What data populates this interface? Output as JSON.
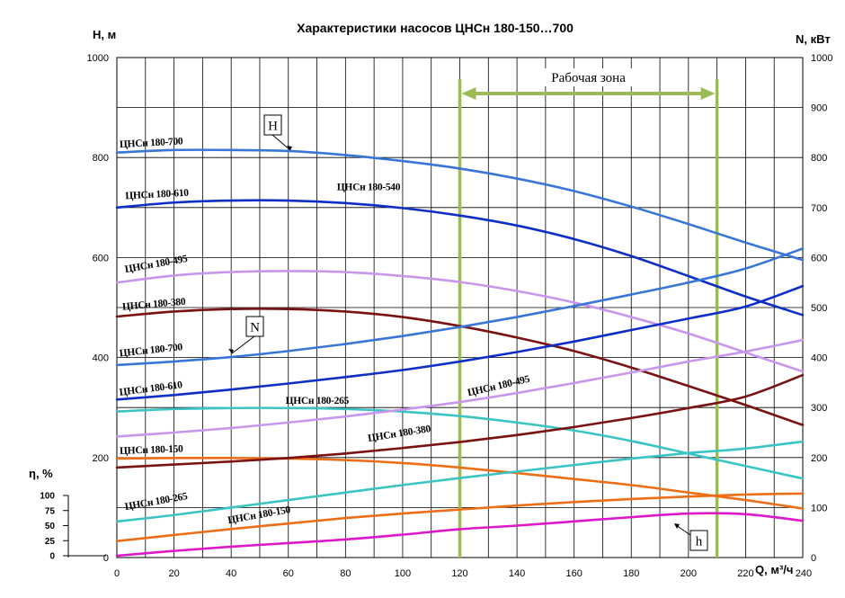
{
  "title": "Характеристики насосов ЦНСн 180-150…700",
  "left_axis_label": "H, м",
  "right_axis_label": "N, кВт",
  "eff_axis_label": "η, %",
  "x_axis_label": "Q, м³/ч",
  "zone_label": "Рабочая зона",
  "box_labels": {
    "H": "H",
    "N": "N",
    "h": "h"
  },
  "eff_ticks": [
    "100",
    "75",
    "50",
    "25",
    "0"
  ],
  "colors": {
    "c700": "#3a76d8",
    "c610": "#0e2ec8",
    "c495": "#c896ec",
    "c380": "#7a1212",
    "c265": "#3ac4c4",
    "c150": "#ee6e18",
    "eff": "#dd18c8",
    "zone": "#9bbb59",
    "grid": "#000000"
  },
  "chart_data": {
    "type": "line",
    "title": "Характеристики насосов ЦНСн 180-150…700",
    "xlabel": "Q, м³/ч",
    "ylabel_left": "H, м",
    "ylabel_right": "N, кВт",
    "ylabel_eff": "η, %",
    "xlim": [
      0,
      240
    ],
    "ylim_left": [
      0,
      1000
    ],
    "ylim_right": [
      0,
      1000
    ],
    "ylim_eff": [
      0,
      100
    ],
    "x_ticks": [
      0,
      20,
      40,
      60,
      80,
      100,
      120,
      140,
      160,
      180,
      200,
      220,
      240
    ],
    "y_ticks_left": [
      0,
      200,
      400,
      600,
      800,
      1000
    ],
    "y_ticks_right": [
      0,
      100,
      200,
      300,
      400,
      500,
      600,
      700,
      800,
      900,
      1000
    ],
    "grid": true,
    "working_zone": {
      "label": "Рабочая зона",
      "x": [
        120,
        210
      ]
    },
    "series": [
      {
        "name": "ЦНСн 180-700",
        "kind": "H",
        "color_key": "c700",
        "label": "ЦНСн 180-700",
        "x": [
          0,
          20,
          40,
          60,
          80,
          100,
          120,
          140,
          160,
          180,
          200,
          220,
          240
        ],
        "y": [
          810,
          815,
          815,
          813,
          805,
          793,
          778,
          758,
          733,
          702,
          667,
          630,
          595
        ]
      },
      {
        "name": "ЦНСн 180-610",
        "kind": "H",
        "color_key": "c610",
        "label": "ЦНСн 180-610",
        "x": [
          0,
          20,
          40,
          60,
          80,
          100,
          120,
          140,
          160,
          180,
          200,
          220,
          240
        ],
        "y": [
          700,
          710,
          714,
          714,
          709,
          699,
          684,
          664,
          637,
          603,
          563,
          522,
          485
        ]
      },
      {
        "name": "ЦНСн 180-495",
        "kind": "H",
        "color_key": "c495",
        "label": "ЦНСн 180-495",
        "x": [
          0,
          20,
          40,
          60,
          80,
          100,
          120,
          140,
          160,
          180,
          200,
          220,
          240
        ],
        "y": [
          550,
          564,
          571,
          573,
          571,
          563,
          551,
          533,
          510,
          481,
          448,
          410,
          372
        ]
      },
      {
        "name": "ЦНСн 180-380",
        "kind": "H",
        "color_key": "c380",
        "label": "ЦНСн 180-380",
        "x": [
          0,
          20,
          40,
          60,
          80,
          100,
          120,
          140,
          160,
          180,
          200,
          220,
          240
        ],
        "y": [
          482,
          492,
          497,
          497,
          492,
          481,
          463,
          440,
          413,
          380,
          343,
          305,
          265
        ]
      },
      {
        "name": "ЦНСн 180-265",
        "kind": "H",
        "color_key": "c265",
        "label": "ЦНСн 180-265",
        "x": [
          0,
          20,
          40,
          60,
          80,
          100,
          120,
          140,
          160,
          180,
          200,
          220,
          240
        ],
        "y": [
          292,
          297,
          299,
          299,
          297,
          292,
          283,
          270,
          254,
          233,
          208,
          183,
          158
        ]
      },
      {
        "name": "ЦНСн 180-150",
        "kind": "H",
        "color_key": "c150",
        "label": "ЦНСн 180-150",
        "x": [
          0,
          20,
          40,
          60,
          80,
          100,
          120,
          140,
          160,
          180,
          200,
          220,
          240
        ],
        "y": [
          198,
          199,
          199,
          198,
          195,
          189,
          180,
          169,
          157,
          145,
          130,
          115,
          98
        ]
      },
      {
        "name": "ЦНСн 180-700",
        "kind": "N",
        "color_key": "c700",
        "label": "ЦНСн 180-700",
        "x": [
          0,
          20,
          40,
          60,
          80,
          100,
          120,
          140,
          160,
          180,
          200,
          220,
          240
        ],
        "y": [
          385,
          392,
          401,
          413,
          427,
          443,
          461,
          481,
          503,
          526,
          550,
          578,
          618
        ]
      },
      {
        "name": "ЦНСн 180-610",
        "kind": "N",
        "color_key": "c610",
        "label": "ЦНСн 180-610",
        "x": [
          0,
          20,
          40,
          60,
          80,
          100,
          120,
          140,
          160,
          180,
          200,
          220,
          240
        ],
        "y": [
          316,
          325,
          336,
          348,
          361,
          375,
          392,
          411,
          432,
          455,
          478,
          502,
          543
        ]
      },
      {
        "name": "ЦНСн 180-495",
        "kind": "N",
        "color_key": "c495",
        "label": "ЦНСн 180-495",
        "x": [
          0,
          20,
          40,
          60,
          80,
          100,
          120,
          140,
          160,
          180,
          200,
          220,
          240
        ],
        "y": [
          242,
          250,
          259,
          270,
          282,
          296,
          311,
          329,
          349,
          370,
          392,
          412,
          435
        ]
      },
      {
        "name": "ЦНСн 180-380",
        "kind": "N",
        "color_key": "c380",
        "label": "ЦНСн 180-380",
        "x": [
          0,
          20,
          40,
          60,
          80,
          100,
          120,
          140,
          160,
          180,
          200,
          220,
          240
        ],
        "y": [
          180,
          186,
          192,
          199,
          208,
          219,
          231,
          245,
          261,
          279,
          299,
          322,
          365
        ]
      },
      {
        "name": "ЦНСн 180-265",
        "kind": "N",
        "color_key": "c265",
        "label": "ЦНСн 180-265",
        "x": [
          0,
          20,
          40,
          60,
          80,
          100,
          120,
          140,
          160,
          180,
          200,
          220,
          240
        ],
        "y": [
          72,
          85,
          100,
          115,
          130,
          145,
          159,
          172,
          185,
          198,
          209,
          218,
          232
        ]
      },
      {
        "name": "ЦНСн 180-150",
        "kind": "N",
        "color_key": "c150",
        "label": "ЦНСн 180-150",
        "x": [
          0,
          20,
          40,
          60,
          80,
          100,
          120,
          140,
          160,
          180,
          200,
          220,
          240
        ],
        "y": [
          33,
          45,
          57,
          68,
          79,
          88,
          96,
          104,
          111,
          117,
          122,
          126,
          128
        ]
      },
      {
        "name": "h",
        "kind": "eff",
        "color_key": "eff",
        "label": "",
        "x": [
          0,
          20,
          40,
          60,
          80,
          100,
          120,
          140,
          160,
          180,
          200,
          220,
          240
        ],
        "y": [
          0,
          8,
          15,
          21,
          27,
          35,
          44,
          50,
          57,
          64,
          70,
          69,
          58
        ]
      }
    ]
  },
  "curve_labels": [
    {
      "text": "ЦНСн 180-700",
      "x": 1,
      "y": 820,
      "rot": -3
    },
    {
      "text": "ЦНСн 180-610",
      "x": 3,
      "y": 717,
      "rot": -3
    },
    {
      "text": "ЦНСн 180-540",
      "x": 77,
      "y": 735,
      "rot": 0
    },
    {
      "text": "ЦНСн 180-495",
      "x": 3,
      "y": 570,
      "rot": -10
    },
    {
      "text": "ЦНСн 180-380",
      "x": 2,
      "y": 495,
      "rot": -5
    },
    {
      "text": "ЦНСн 180-700",
      "x": 1,
      "y": 402,
      "rot": -6
    },
    {
      "text": "ЦНСн 180-610",
      "x": 1,
      "y": 324,
      "rot": -7
    },
    {
      "text": "ЦНСн 180-265",
      "x": 59,
      "y": 308,
      "rot": 0
    },
    {
      "text": "ЦНСн 180-495",
      "x": 123,
      "y": 323,
      "rot": -13
    },
    {
      "text": "ЦНСн 180-380",
      "x": 88,
      "y": 232,
      "rot": -9
    },
    {
      "text": "ЦНСн 180-150",
      "x": 1,
      "y": 207,
      "rot": -2
    },
    {
      "text": "ЦНСн 180-265",
      "x": 3,
      "y": 95,
      "rot": -10
    },
    {
      "text": "ЦНСн 180-150",
      "x": 39,
      "y": 68,
      "rot": -10
    }
  ]
}
